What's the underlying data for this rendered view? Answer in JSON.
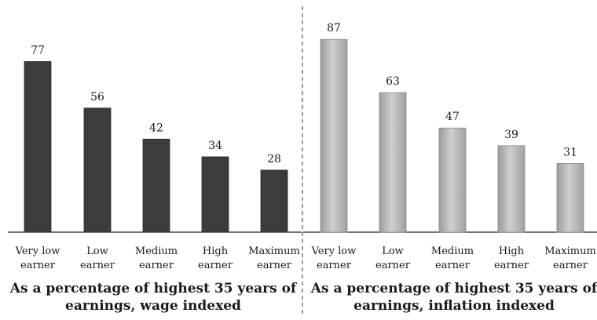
{
  "chart_data": [
    {
      "type": "bar",
      "title": "As a percentage of highest 35 years of earnings, wage indexed",
      "title_lines": [
        "As a percentage of highest 35 years of",
        "earnings, wage indexed"
      ],
      "categories": [
        "Very low earner",
        "Low earner",
        "Medium earner",
        "High earner",
        "Maximum earner"
      ],
      "category_lines": [
        [
          "Very low",
          "earner"
        ],
        [
          "Low",
          "earner"
        ],
        [
          "Medium",
          "earner"
        ],
        [
          "High",
          "earner"
        ],
        [
          "Maximum",
          "earner"
        ]
      ],
      "values": [
        77,
        56,
        42,
        34,
        28
      ],
      "data_labels": [
        "77",
        "56",
        "42",
        "34",
        "28"
      ],
      "bar_color": "#3c3c3c",
      "ylim": [
        0,
        100
      ],
      "grid": false
    },
    {
      "type": "bar",
      "title": "As a percentage of highest 35 years of earnings, inflation indexed",
      "title_lines": [
        "As a percentage of highest 35 years of",
        "earnings, inflation indexed"
      ],
      "categories": [
        "Very low earner",
        "Low earner",
        "Medium earner",
        "High earner",
        "Maximum earner"
      ],
      "category_lines": [
        [
          "Very low",
          "earner"
        ],
        [
          "Low",
          "earner"
        ],
        [
          "Medium",
          "earner"
        ],
        [
          "High",
          "earner"
        ],
        [
          "Maximum",
          "earner"
        ]
      ],
      "values": [
        87,
        63,
        47,
        39,
        31
      ],
      "data_labels": [
        "87",
        "63",
        "47",
        "39",
        "31"
      ],
      "bar_color": "#b4b4b4",
      "ylim": [
        0,
        100
      ],
      "grid": false
    }
  ]
}
